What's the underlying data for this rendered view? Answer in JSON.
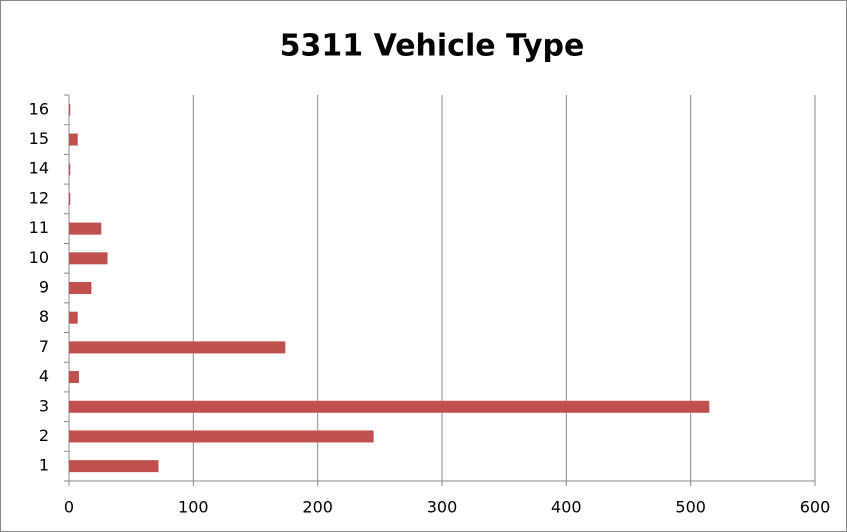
{
  "chart_data": {
    "type": "hbar",
    "title": "5311 Vehicle Type",
    "categories": [
      "1",
      "2",
      "3",
      "4",
      "7",
      "8",
      "9",
      "10",
      "11",
      "12",
      "14",
      "15",
      "16"
    ],
    "values": [
      72,
      245,
      515,
      8,
      174,
      7,
      18,
      31,
      26,
      1,
      1,
      7,
      1
    ],
    "color": "#c0504d",
    "xlim": [
      0,
      600
    ],
    "xticks": [
      0,
      100,
      200,
      300,
      400,
      500,
      600
    ],
    "grid": true
  }
}
